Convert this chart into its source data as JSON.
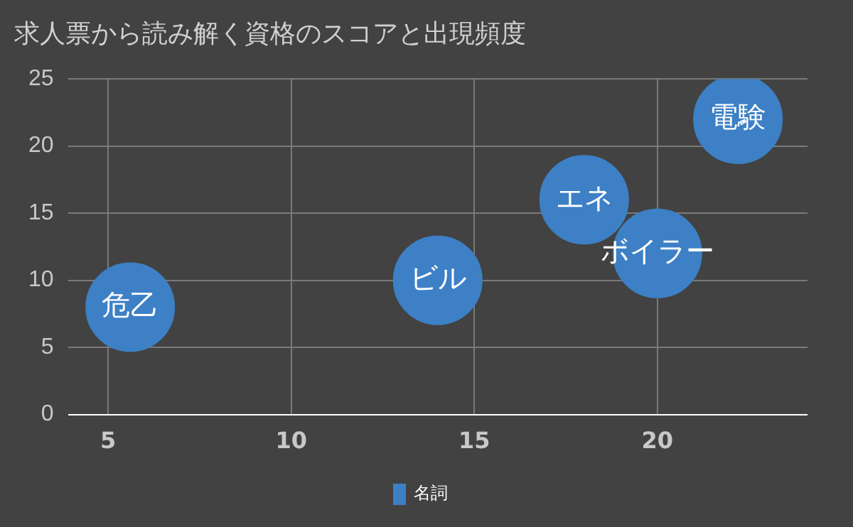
{
  "chart_data": {
    "type": "bubble",
    "title": "求人票から読み解く資格のスコアと出現頻度",
    "x": [
      5.6,
      14,
      18,
      20,
      22.2
    ],
    "series": [
      {
        "name": "名詞",
        "color": "#3d80c6",
        "values": [
          8,
          10,
          16,
          12,
          22
        ],
        "sizes": [
          1,
          1,
          1,
          1,
          1
        ]
      }
    ],
    "xlim": [
      3.9,
      24.1
    ],
    "xticks": [
      5,
      10,
      15,
      20
    ],
    "ylim": [
      0,
      25
    ],
    "yticks": [
      0,
      5,
      10,
      15,
      20,
      25
    ],
    "grid": true,
    "legend": "bottom",
    "annotations": [
      {
        "text": "危乙",
        "x": 5.6,
        "y": 8
      },
      {
        "text": "ビル",
        "x": 14,
        "y": 10
      },
      {
        "text": "エネ",
        "x": 18,
        "y": 16
      },
      {
        "text": "ボイラー",
        "x": 20,
        "y": 12
      },
      {
        "text": "電験",
        "x": 22.2,
        "y": 22
      }
    ]
  }
}
